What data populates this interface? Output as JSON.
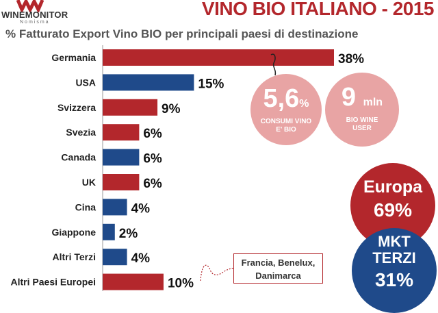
{
  "header": {
    "logo_text": "WINEMONITOR",
    "logo_sub": "Nomisma",
    "title": "VINO BIO ITALIANO - 2015",
    "subtitle": "% Fatturato Export Vino BIO per principali paesi di destinazione"
  },
  "colors": {
    "red": "#b3272c",
    "blue": "#1f4a8a",
    "pink": "#e8a4a4"
  },
  "chart_data": {
    "type": "bar",
    "orientation": "horizontal",
    "categories": [
      "Germania",
      "USA",
      "Svizzera",
      "Svezia",
      "Canada",
      "UK",
      "Cina",
      "Giappone",
      "Altri Terzi",
      "Altri Paesi Europei"
    ],
    "values": [
      38,
      15,
      9,
      6,
      6,
      6,
      4,
      2,
      4,
      10
    ],
    "value_labels": [
      "38%",
      "15%",
      "9%",
      "6%",
      "6%",
      "6%",
      "4%",
      "2%",
      "4%",
      "10%"
    ],
    "groups": [
      "Europa",
      "MKT TERZI",
      "Europa",
      "Europa",
      "MKT TERZI",
      "Europa",
      "MKT TERZI",
      "MKT TERZI",
      "MKT TERZI",
      "Europa"
    ],
    "group_colors": {
      "Europa": "#b3272c",
      "MKT TERZI": "#1f4a8a"
    },
    "xlim": [
      0,
      38
    ],
    "grid": false,
    "title": "% Fatturato Export Vino BIO per principali paesi di destinazione"
  },
  "callouts": {
    "consumi": {
      "value": "5,6",
      "unit": "%",
      "label_line1": "CONSUMI VINO",
      "label_line2": "E' BIO"
    },
    "users": {
      "value": "9",
      "unit": "mln",
      "label_line1": "BIO WINE",
      "label_line2": "USER"
    },
    "europa": {
      "label": "Europa",
      "value": "69%"
    },
    "terzi": {
      "label_line1": "MKT",
      "label_line2": "TERZI",
      "value": "31%"
    }
  },
  "note": {
    "line1": "Francia, Benelux,",
    "line2": "Danimarca"
  }
}
